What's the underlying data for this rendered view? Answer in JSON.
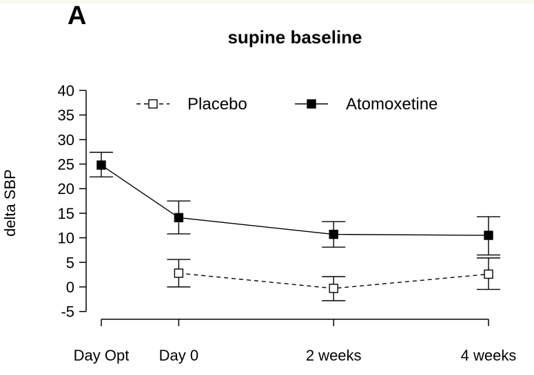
{
  "panel_label": "A",
  "chart_data": {
    "type": "line",
    "title": "supine baseline",
    "xlabel": "",
    "ylabel": "delta SBP",
    "categories": [
      "Day Opt",
      "Day 0",
      "2 weeks",
      "4 weeks"
    ],
    "x": [
      0,
      1,
      3,
      5
    ],
    "ylim": [
      -7,
      41
    ],
    "yticks": [
      -5,
      0,
      5,
      10,
      15,
      20,
      25,
      30,
      35,
      40
    ],
    "grid": false,
    "legend": "top-center",
    "series": [
      {
        "name": "Placebo",
        "style": "dashed",
        "marker": "open-square",
        "color": "#000000",
        "x": [
          1,
          3,
          5
        ],
        "values": [
          2.8,
          -0.3,
          2.6
        ],
        "err_low": [
          0.0,
          -2.8,
          -0.5
        ],
        "err_high": [
          5.6,
          2.1,
          5.9
        ]
      },
      {
        "name": "Atomoxetine",
        "style": "solid",
        "marker": "filled-square",
        "color": "#000000",
        "x": [
          0,
          1,
          3,
          5
        ],
        "values": [
          24.8,
          14.1,
          10.7,
          10.5
        ],
        "err_low": [
          22.4,
          10.8,
          8.1,
          6.5
        ],
        "err_high": [
          27.4,
          17.5,
          13.3,
          14.3
        ]
      }
    ]
  }
}
